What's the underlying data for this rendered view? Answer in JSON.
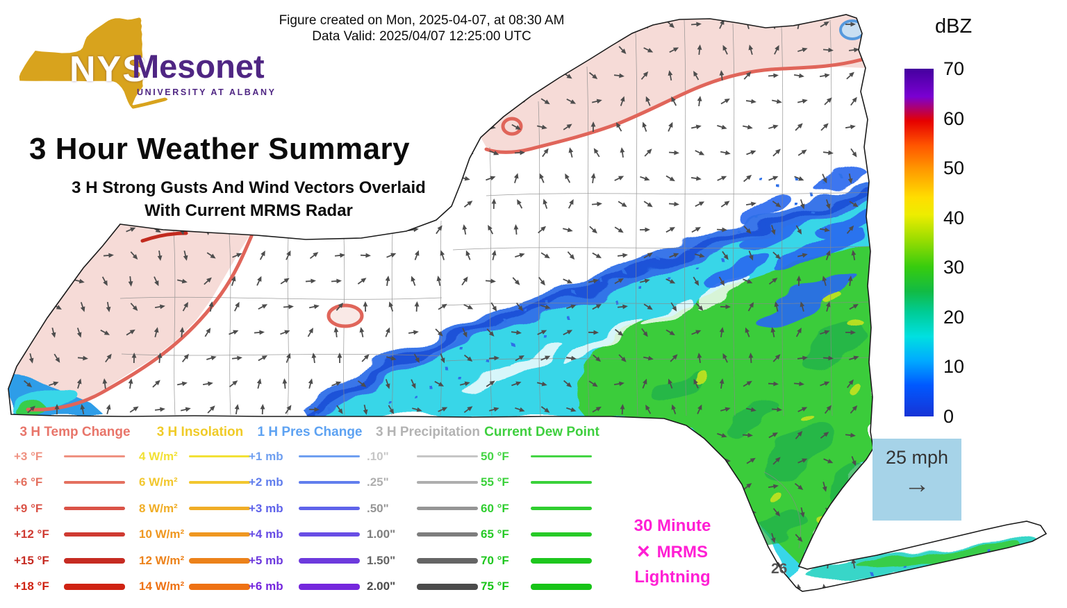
{
  "header": {
    "created": "Figure created on Mon, 2025-04-07, at 08:30 AM",
    "valid": "Data Valid: 2025/04/07 12:25:00 UTC"
  },
  "logo": {
    "acronym": "NYS",
    "name": "Mesonet",
    "subtitle": "UNIVERSITY AT ALBANY",
    "gold": "#d8a31d",
    "purple": "#4f2683"
  },
  "title": {
    "main": "3 Hour Weather Summary",
    "subtitle_line1": "3 H Strong Gusts And Wind Vectors Overlaid",
    "subtitle_line2": "With Current MRMS Radar"
  },
  "colorbar": {
    "title": "dBZ",
    "tick_labels": [
      "70",
      "60",
      "50",
      "40",
      "30",
      "20",
      "10",
      "0"
    ],
    "gradient_stops": [
      "#44009e 0%",
      "#7a00d2 8%",
      "#e60000 15%",
      "#ff5500 22%",
      "#ff9900 29%",
      "#ffdd00 37%",
      "#eded00 42%",
      "#9cdd00 49%",
      "#37cc0e 57%",
      "#12bb44 64%",
      "#00cc96 70%",
      "#00e0e0 77%",
      "#00aaff 84%",
      "#0059ff 91%",
      "#1733d6 100%"
    ]
  },
  "wind_scale": {
    "label": "25 mph",
    "bg": "#a6d3e8"
  },
  "lightning": {
    "marker": "×",
    "line1": "30 Minute",
    "line2": "MRMS",
    "line3": "Lightning",
    "color": "#ff1fd4"
  },
  "map": {
    "gust_label": "26"
  },
  "legend": {
    "columns": [
      {
        "title": "3 H Temp Change",
        "title_color": "#e8756a",
        "items": [
          {
            "label": "+3 °F",
            "color": "#ef9181"
          },
          {
            "label": "+6 °F",
            "color": "#e4705f"
          },
          {
            "label": "+9 °F",
            "color": "#da5347"
          },
          {
            "label": "+12 °F",
            "color": "#cf3a31"
          },
          {
            "label": "+15 °F",
            "color": "#c62b22"
          },
          {
            "label": "+18 °F",
            "color": "#cf2212"
          }
        ]
      },
      {
        "title": "3 H Insolation",
        "title_color": "#f0cb28",
        "items": [
          {
            "label": "4 W/m²",
            "color": "#f2e135"
          },
          {
            "label": "6 W/m²",
            "color": "#f2c72e"
          },
          {
            "label": "8 W/m²",
            "color": "#f0ad26"
          },
          {
            "label": "10 W/m²",
            "color": "#ef9720"
          },
          {
            "label": "12 W/m²",
            "color": "#ec821a"
          },
          {
            "label": "14 W/m²",
            "color": "#ee7113"
          }
        ]
      },
      {
        "title": "1 H Pres Change",
        "title_color": "#5da2f2",
        "items": [
          {
            "label": "+1 mb",
            "color": "#6f9ff0"
          },
          {
            "label": "+2 mb",
            "color": "#617eed"
          },
          {
            "label": "+3 mb",
            "color": "#5f63ea"
          },
          {
            "label": "+4 mb",
            "color": "#684de5"
          },
          {
            "label": "+5 mb",
            "color": "#6d3add"
          },
          {
            "label": "+6 mb",
            "color": "#7527dd"
          }
        ]
      },
      {
        "title": "3 H Precipitation",
        "title_color": "#b3b3b3",
        "items": [
          {
            "label": ".10\"",
            "color": "#c6c6c6"
          },
          {
            "label": ".25\"",
            "color": "#aeaeae"
          },
          {
            "label": ".50\"",
            "color": "#959595"
          },
          {
            "label": "1.00\"",
            "color": "#7d7d7d"
          },
          {
            "label": "1.50\"",
            "color": "#656565"
          },
          {
            "label": "2.00\"",
            "color": "#4b4b4b"
          }
        ]
      },
      {
        "title": "Current Dew Point",
        "title_color": "#3ecf3e",
        "items": [
          {
            "label": "50 °F",
            "color": "#44d544"
          },
          {
            "label": "55 °F",
            "color": "#3ad13a"
          },
          {
            "label": "60 °F",
            "color": "#30ce30"
          },
          {
            "label": "65 °F",
            "color": "#27ca27"
          },
          {
            "label": "70 °F",
            "color": "#1ec71e"
          },
          {
            "label": "75 °F",
            "color": "#17c417"
          }
        ]
      }
    ]
  }
}
